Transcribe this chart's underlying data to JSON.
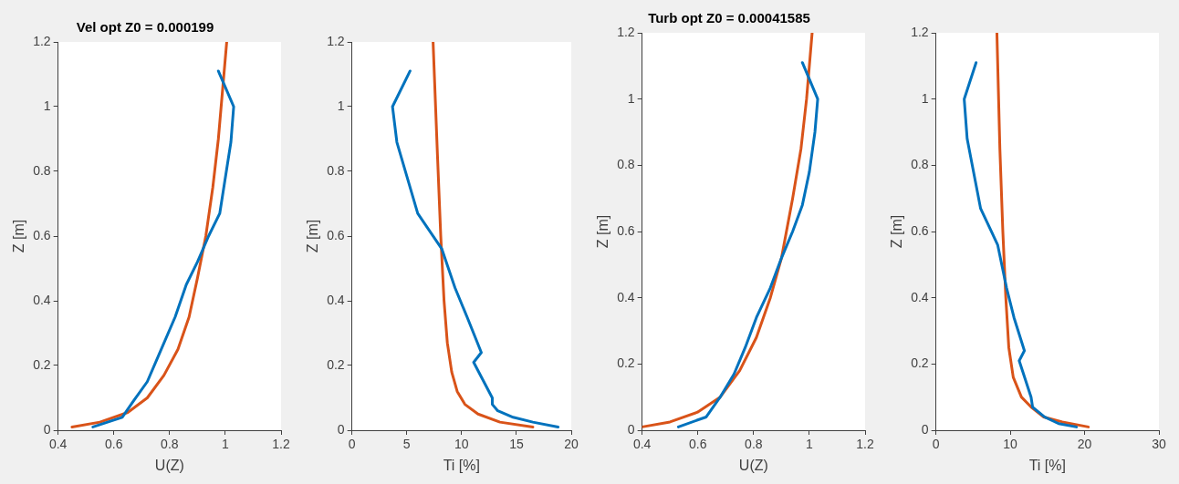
{
  "chart_data": [
    {
      "type": "line",
      "title": "Vel opt Z0 = 0.000199",
      "xlabel": "U(Z)",
      "ylabel": "Z [m]",
      "xlim": [
        0.4,
        1.2
      ],
      "xticks": [
        0.4,
        0.6,
        0.8,
        1,
        1.2
      ],
      "ylim": [
        0,
        1.2
      ],
      "yticks": [
        0,
        0.2,
        0.4,
        0.6,
        0.8,
        1,
        1.2
      ],
      "series": [
        {
          "color": "#0072bd",
          "x": [
            0.525,
            0.63,
            0.67,
            0.72,
            0.76,
            0.82,
            0.86,
            0.9,
            0.94,
            0.98,
            1.0,
            1.02,
            1.03,
            0.975
          ],
          "values": [
            0.01,
            0.04,
            0.09,
            0.15,
            0.23,
            0.35,
            0.45,
            0.52,
            0.6,
            0.67,
            0.78,
            0.89,
            1.0,
            1.11
          ]
        },
        {
          "color": "#d95319",
          "x": [
            0.45,
            0.55,
            0.65,
            0.72,
            0.78,
            0.83,
            0.87,
            0.9,
            0.93,
            0.955,
            0.975,
            0.99,
            1.005
          ],
          "values": [
            0.01,
            0.025,
            0.055,
            0.1,
            0.17,
            0.25,
            0.35,
            0.47,
            0.6,
            0.75,
            0.9,
            1.05,
            1.2
          ]
        }
      ]
    },
    {
      "type": "line",
      "xlabel": "Ti [%]",
      "ylabel": "Z [m]",
      "xlim": [
        0,
        20
      ],
      "xticks": [
        0,
        5,
        10,
        15,
        20
      ],
      "ylim": [
        0,
        1.2
      ],
      "yticks": [
        0,
        0.2,
        0.4,
        0.6,
        0.8,
        1,
        1.2
      ],
      "series": [
        {
          "color": "#0072bd",
          "x": [
            18.8,
            16.5,
            14.7,
            13.3,
            12.8,
            12.8,
            11.1,
            11.8,
            10.5,
            9.4,
            8.2,
            6.0,
            4.1,
            3.7,
            5.3
          ],
          "values": [
            0.01,
            0.025,
            0.04,
            0.06,
            0.08,
            0.1,
            0.21,
            0.24,
            0.35,
            0.44,
            0.56,
            0.67,
            0.89,
            1.0,
            1.11
          ]
        },
        {
          "color": "#d95319",
          "x": [
            16.5,
            13.5,
            11.5,
            10.3,
            9.6,
            9.1,
            8.7,
            8.4,
            8.1,
            7.8,
            7.4
          ],
          "values": [
            0.01,
            0.025,
            0.05,
            0.08,
            0.12,
            0.18,
            0.27,
            0.4,
            0.6,
            0.85,
            1.2
          ]
        }
      ]
    },
    {
      "type": "line",
      "title": "Turb opt Z0 = 0.00041585",
      "xlabel": "U(Z)",
      "ylabel": "Z [m]",
      "xlim": [
        0.4,
        1.2
      ],
      "xticks": [
        0.4,
        0.6,
        0.8,
        1,
        1.2
      ],
      "ylim": [
        0,
        1.2
      ],
      "yticks": [
        0,
        0.2,
        0.4,
        0.6,
        0.8,
        1,
        1.2
      ],
      "series": [
        {
          "color": "#0072bd",
          "x": [
            0.53,
            0.63,
            0.68,
            0.73,
            0.77,
            0.81,
            0.86,
            0.9,
            0.94,
            0.975,
            1.0,
            1.02,
            1.03,
            0.975
          ],
          "values": [
            0.01,
            0.04,
            0.1,
            0.17,
            0.25,
            0.34,
            0.43,
            0.52,
            0.6,
            0.68,
            0.78,
            0.9,
            1.0,
            1.11
          ]
        },
        {
          "color": "#d95319",
          "x": [
            0.4,
            0.5,
            0.6,
            0.68,
            0.75,
            0.81,
            0.86,
            0.9,
            0.94,
            0.97,
            0.99,
            1.01
          ],
          "values": [
            0.01,
            0.025,
            0.055,
            0.1,
            0.18,
            0.28,
            0.4,
            0.52,
            0.7,
            0.85,
            1.0,
            1.2
          ]
        }
      ]
    },
    {
      "type": "line",
      "xlabel": "Ti [%]",
      "ylabel": "Z [m]",
      "xlim": [
        0,
        30
      ],
      "xticks": [
        0,
        10,
        20,
        30
      ],
      "ylim": [
        0,
        1.2
      ],
      "yticks": [
        0,
        0.2,
        0.4,
        0.6,
        0.8,
        1,
        1.2
      ],
      "series": [
        {
          "color": "#0072bd",
          "x": [
            18.9,
            16.5,
            14.6,
            13.0,
            12.8,
            11.2,
            11.9,
            10.5,
            9.5,
            8.3,
            6.0,
            4.2,
            3.8,
            5.4
          ],
          "values": [
            0.01,
            0.02,
            0.04,
            0.07,
            0.1,
            0.21,
            0.24,
            0.34,
            0.43,
            0.56,
            0.67,
            0.88,
            1.0,
            1.11
          ]
        },
        {
          "color": "#d95319",
          "x": [
            20.5,
            17,
            14.5,
            12.8,
            11.5,
            10.4,
            9.8,
            9.4,
            9.0,
            8.6,
            8.2
          ],
          "values": [
            0.01,
            0.025,
            0.04,
            0.07,
            0.1,
            0.16,
            0.25,
            0.4,
            0.6,
            0.85,
            1.2
          ]
        }
      ]
    }
  ]
}
